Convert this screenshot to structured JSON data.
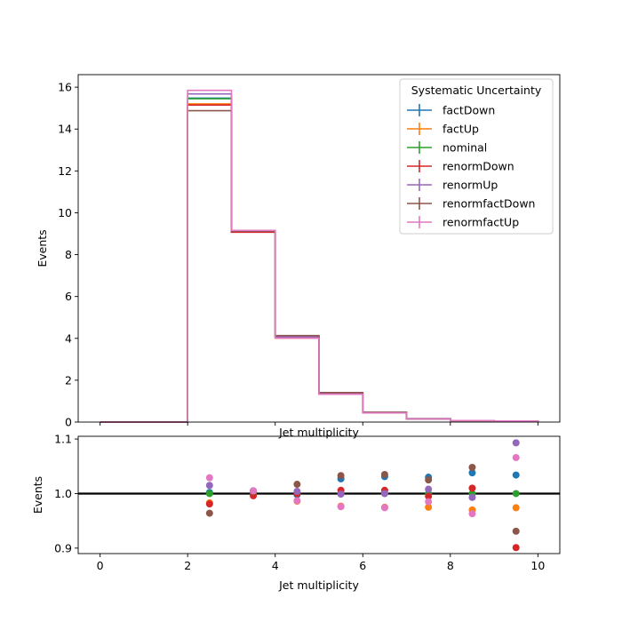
{
  "chart_data": [
    {
      "type": "step",
      "xlabel": "Jet multiplicity",
      "ylabel": "Events",
      "xlim": [
        -0.5,
        10.5
      ],
      "ylim": [
        0,
        16.6
      ],
      "xticks": [
        0,
        2,
        4,
        6,
        8,
        10
      ],
      "yticks": [
        0,
        2,
        4,
        6,
        8,
        10,
        12,
        14,
        16
      ],
      "bin_edges": [
        0,
        1,
        2,
        3,
        4,
        5,
        6,
        7,
        8,
        9,
        10
      ],
      "legend_title": "Systematic Uncertainty",
      "legend_position": "top-right",
      "series": [
        {
          "name": "factDown",
          "color": "#1f77b4",
          "values": [
            0,
            0,
            15.48,
            9.15,
            4.05,
            1.39,
            0.46,
            0.16,
            0.07,
            0.05
          ]
        },
        {
          "name": "factUp",
          "color": "#ff7f0e",
          "values": [
            0,
            0,
            15.2,
            9.13,
            4.01,
            1.33,
            0.44,
            0.15,
            0.07,
            0.04
          ]
        },
        {
          "name": "nominal",
          "color": "#2ca02c",
          "values": [
            0,
            0,
            15.45,
            9.1,
            4.06,
            1.36,
            0.45,
            0.15,
            0.07,
            0.04
          ]
        },
        {
          "name": "renormDown",
          "color": "#d62728",
          "values": [
            0,
            0,
            15.15,
            9.07,
            4.06,
            1.37,
            0.45,
            0.15,
            0.07,
            0.04
          ]
        },
        {
          "name": "renormUp",
          "color": "#9467bd",
          "values": [
            0,
            0,
            15.68,
            9.13,
            4.07,
            1.36,
            0.45,
            0.15,
            0.07,
            0.04
          ]
        },
        {
          "name": "renormfactDown",
          "color": "#8c564b",
          "values": [
            0,
            0,
            14.88,
            9.14,
            4.13,
            1.41,
            0.47,
            0.16,
            0.07,
            0.04
          ]
        },
        {
          "name": "renormfactUp",
          "color": "#e377c2",
          "values": [
            0,
            0,
            15.85,
            9.16,
            4.01,
            1.33,
            0.44,
            0.15,
            0.07,
            0.05
          ]
        }
      ]
    },
    {
      "type": "scatter",
      "xlabel": "Jet multiplicity",
      "ylabel": "Events",
      "xlim": [
        -0.5,
        10.5
      ],
      "ylim": [
        0.89,
        1.105
      ],
      "xticks": [
        0,
        2,
        4,
        6,
        8,
        10
      ],
      "yticks": [
        0.9,
        1.0,
        1.1
      ],
      "reference_line": 1.0,
      "x": [
        2.5,
        3.5,
        4.5,
        5.5,
        6.5,
        7.5,
        8.5,
        9.5
      ],
      "series": [
        {
          "name": "factDown",
          "color": "#1f77b4",
          "values": [
            1.002,
            1.005,
            0.998,
            1.027,
            1.031,
            1.03,
            1.038,
            1.034
          ]
        },
        {
          "name": "factUp",
          "color": "#ff7f0e",
          "values": [
            0.983,
            1.003,
            0.986,
            0.977,
            0.975,
            0.975,
            0.97,
            0.974
          ]
        },
        {
          "name": "nominal",
          "color": "#2ca02c",
          "values": [
            1.0,
            1.0,
            1.0,
            1.0,
            1.0,
            1.0,
            1.0,
            1.0
          ]
        },
        {
          "name": "renormDown",
          "color": "#d62728",
          "values": [
            0.981,
            0.996,
            1.0,
            1.006,
            1.006,
            0.995,
            1.01,
            0.901
          ]
        },
        {
          "name": "renormUp",
          "color": "#9467bd",
          "values": [
            1.015,
            1.005,
            1.004,
            0.999,
            1.0,
            1.008,
            0.993,
            1.093
          ]
        },
        {
          "name": "renormfactDown",
          "color": "#8c564b",
          "values": [
            0.964,
            1.004,
            1.017,
            1.033,
            1.035,
            1.025,
            1.048,
            0.931
          ]
        },
        {
          "name": "renormfactUp",
          "color": "#e377c2",
          "values": [
            1.029,
            1.005,
            0.987,
            0.976,
            0.974,
            0.985,
            0.963,
            1.066
          ]
        }
      ]
    }
  ]
}
